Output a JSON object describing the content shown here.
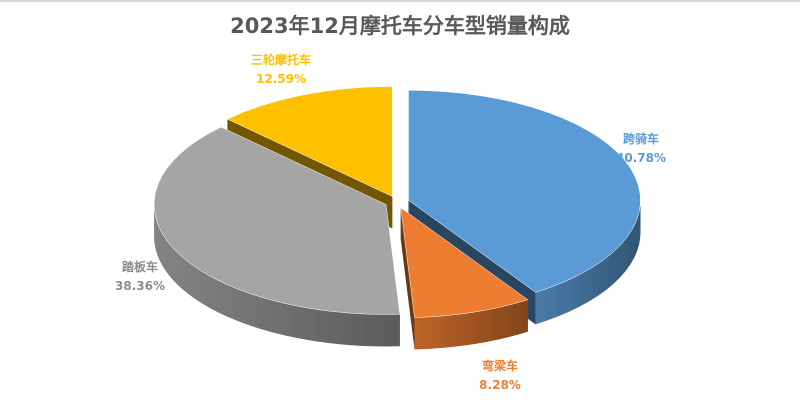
{
  "chart_data": {
    "type": "pie",
    "title": "2023年12月摩托车分车型销量构成",
    "three_d": true,
    "exploded": true,
    "start": "top, clockwise",
    "slices": [
      {
        "name": "跨骑车",
        "value": 40.78,
        "label": "40.78%",
        "color": "#5B9BD5"
      },
      {
        "name": "弯梁车",
        "value": 8.28,
        "label": "8.28%",
        "color": "#ED7D31"
      },
      {
        "name": "踏板车",
        "value": 38.36,
        "label": "38.36%",
        "color": "#A5A5A5"
      },
      {
        "name": "三轮摩托车",
        "value": 12.59,
        "label": "12.59%",
        "color": "#FFC000"
      }
    ],
    "legend": "none",
    "data_labels": "category name and percentage"
  }
}
